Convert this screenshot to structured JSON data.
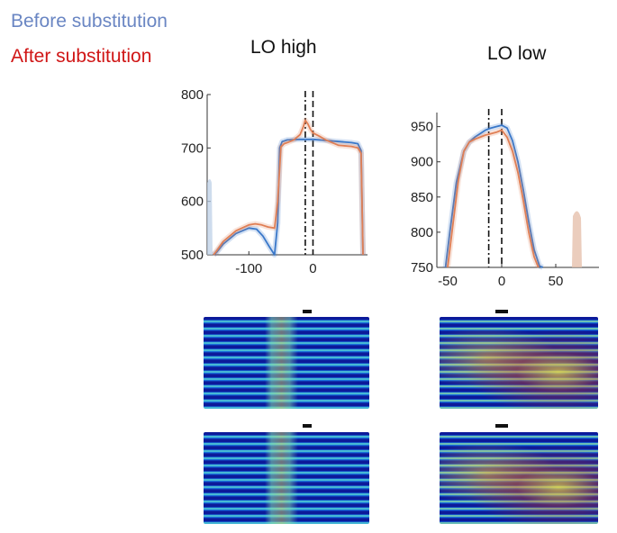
{
  "legend": {
    "before_label": "Before substitution",
    "after_label": "After substitution",
    "before_color": "#6a86c3",
    "after_color": "#d01616"
  },
  "chart_data": [
    {
      "type": "line",
      "title": "LO high",
      "xlabel": "",
      "ylabel": "",
      "xlim": [
        -165,
        85
      ],
      "ylim": [
        500,
        800
      ],
      "xticks": [
        -100,
        0
      ],
      "yticks": [
        500,
        600,
        700,
        800
      ],
      "vlines": [
        {
          "x": -12,
          "style": "dashdot"
        },
        {
          "x": 0,
          "style": "dashed"
        }
      ],
      "series": [
        {
          "name": "Before substitution",
          "color": "#3a78c9",
          "x": [
            -155,
            -150,
            -140,
            -120,
            -100,
            -88,
            -78,
            -68,
            -60,
            -55,
            -52,
            -48,
            -45,
            -40,
            -20,
            0,
            20,
            40,
            60,
            70,
            75,
            78
          ],
          "y": [
            500,
            505,
            520,
            540,
            550,
            548,
            535,
            515,
            500,
            560,
            700,
            712,
            713,
            715,
            716,
            716,
            714,
            712,
            710,
            708,
            695,
            500
          ]
        },
        {
          "name": "After substitution",
          "color": "#e07f55",
          "x": [
            -155,
            -150,
            -140,
            -120,
            -100,
            -90,
            -80,
            -70,
            -60,
            -55,
            -50,
            -45,
            -40,
            -30,
            -20,
            -15,
            -12,
            -8,
            -4,
            0,
            10,
            20,
            30,
            40,
            60,
            70,
            75,
            78
          ],
          "y": [
            500,
            508,
            525,
            545,
            556,
            558,
            556,
            552,
            550,
            600,
            702,
            708,
            710,
            715,
            725,
            740,
            752,
            745,
            735,
            728,
            722,
            715,
            710,
            705,
            703,
            700,
            690,
            500
          ]
        }
      ]
    },
    {
      "type": "line",
      "title": "LO low",
      "xlabel": "",
      "ylabel": "",
      "xlim": [
        -60,
        90
      ],
      "ylim": [
        750,
        970
      ],
      "xticks": [
        -50,
        0,
        50
      ],
      "yticks": [
        750,
        800,
        850,
        900,
        950
      ],
      "vlines": [
        {
          "x": -12,
          "style": "dashdot"
        },
        {
          "x": 0,
          "style": "dashed"
        }
      ],
      "series": [
        {
          "name": "Before substitution",
          "color": "#3a78c9",
          "x": [
            -52,
            -48,
            -42,
            -35,
            -30,
            -25,
            -20,
            -15,
            -10,
            -5,
            0,
            5,
            10,
            15,
            20,
            25,
            30,
            35,
            38
          ],
          "y": [
            750,
            800,
            870,
            915,
            928,
            935,
            940,
            945,
            948,
            950,
            952,
            948,
            930,
            900,
            860,
            815,
            775,
            752,
            750
          ]
        },
        {
          "name": "After substitution",
          "color": "#e07f55",
          "x": [
            -50,
            -46,
            -40,
            -35,
            -30,
            -25,
            -20,
            -15,
            -10,
            -5,
            0,
            5,
            10,
            15,
            20,
            25,
            30,
            34
          ],
          "y": [
            750,
            800,
            875,
            915,
            928,
            932,
            935,
            938,
            940,
            942,
            945,
            935,
            915,
            885,
            845,
            800,
            765,
            750
          ]
        }
      ]
    }
  ]
}
